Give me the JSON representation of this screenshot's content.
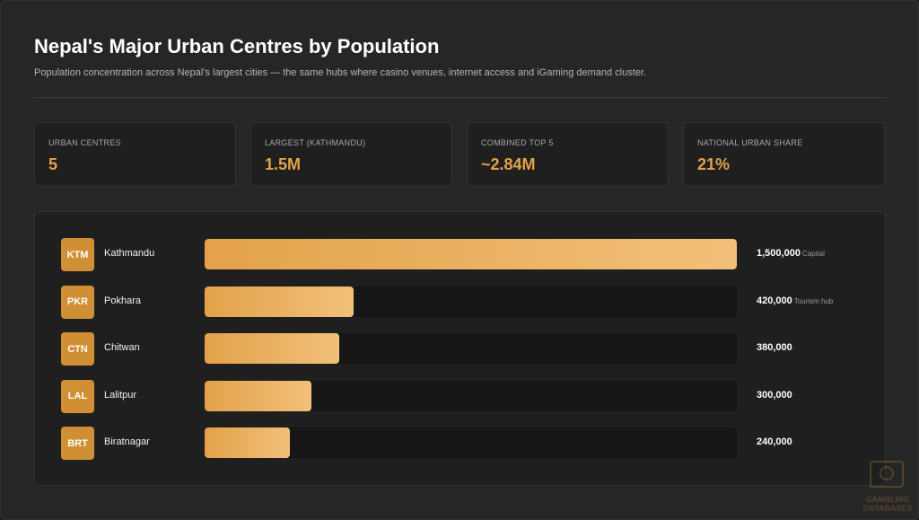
{
  "header": {
    "title": "Nepal's Major Urban Centres by Population",
    "subtitle": "Population concentration across Nepal's largest cities — the same hubs where casino venues, internet access and iGaming demand cluster."
  },
  "stats": [
    {
      "label": "URBAN CENTRES",
      "value": "5"
    },
    {
      "label": "LARGEST (KATHMANDU)",
      "value": "1.5M"
    },
    {
      "label": "COMBINED TOP 5",
      "value": "~2.84M"
    },
    {
      "label": "NATIONAL URBAN SHARE",
      "value": "21%"
    }
  ],
  "colors": {
    "accent": "#e3a24a",
    "accent_light": "#f2c07a",
    "badge": "#d08f33",
    "track": "#161616"
  },
  "chart_data": {
    "type": "bar",
    "orientation": "horizontal",
    "categories": [
      "Kathmandu",
      "Pokhara",
      "Chitwan",
      "Lalitpur",
      "Biratnagar"
    ],
    "codes": [
      "KTM",
      "PKR",
      "CTN",
      "LAL",
      "BRT"
    ],
    "values": [
      1500000,
      420000,
      380000,
      300000,
      240000
    ],
    "value_labels": [
      "1,500,000",
      "420,000",
      "380,000",
      "300,000",
      "240,000"
    ],
    "notes": [
      "Capital",
      "Tourism hub",
      "",
      "",
      ""
    ],
    "xlim": [
      0,
      1500000
    ]
  },
  "watermark": {
    "line1": "GAMBLING",
    "line2": "DATABASES"
  }
}
